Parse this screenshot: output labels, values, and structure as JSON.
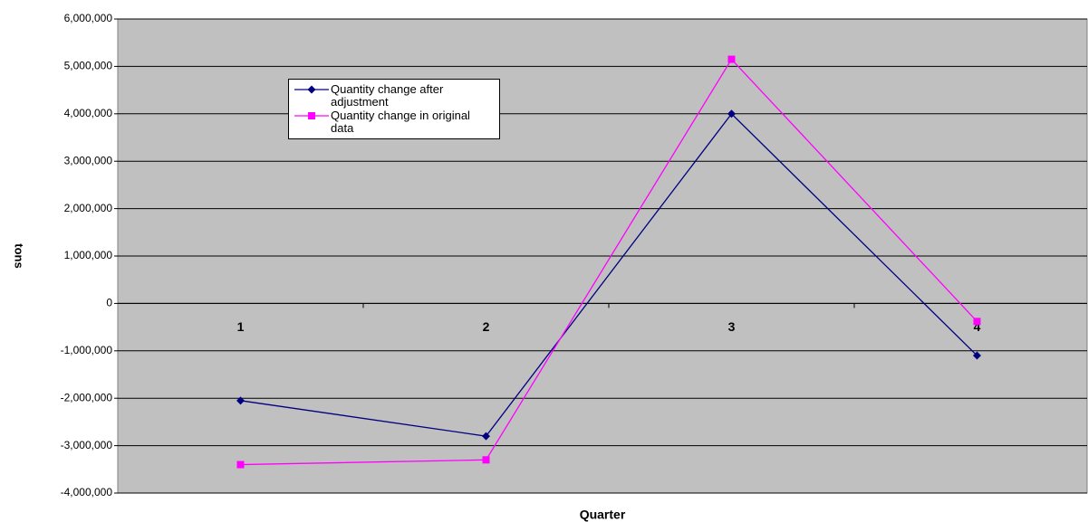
{
  "chart_data": {
    "type": "line",
    "x_label": "Quarter",
    "y_label": "tons",
    "categories": [
      "1",
      "2",
      "3",
      "4"
    ],
    "series": [
      {
        "name": "Quantity change after adjustment",
        "color": "#000080",
        "marker": "diamond",
        "values": [
          -2050000,
          -2800000,
          4000000,
          -1100000
        ]
      },
      {
        "name": "Quantity change in original data",
        "color": "#ff00ff",
        "marker": "square",
        "values": [
          -3400000,
          -3300000,
          5150000,
          -380000
        ]
      }
    ],
    "ylim": [
      -4000000,
      6000000
    ],
    "yticks": [
      {
        "value": -4000000,
        "label": "-4,000,000"
      },
      {
        "value": -3000000,
        "label": "-3,000,000"
      },
      {
        "value": -2000000,
        "label": "-2,000,000"
      },
      {
        "value": -1000000,
        "label": "-1,000,000"
      },
      0,
      {
        "value": 1000000,
        "label": "1,000,000"
      },
      {
        "value": 2000000,
        "label": "2,000,000"
      },
      {
        "value": 3000000,
        "label": "3,000,000"
      },
      {
        "value": 4000000,
        "label": "4,000,000"
      },
      {
        "value": 5000000,
        "label": "5,000,000"
      },
      {
        "value": 6000000,
        "label": "6,000,000"
      }
    ],
    "grid": true,
    "plot_background": "#c0c0c0"
  }
}
